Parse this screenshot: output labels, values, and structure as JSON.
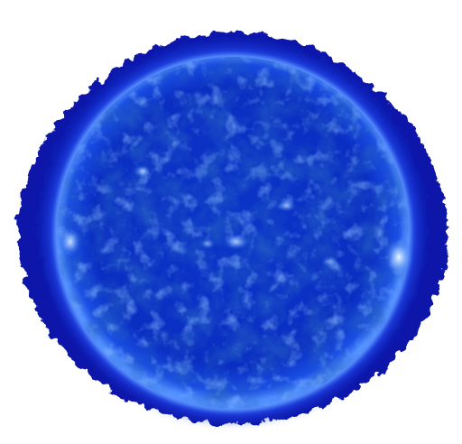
{
  "image": {
    "subject": "solar-disk",
    "colors": {
      "background": "#ffffff",
      "corona_outer": "#0a16a8",
      "corona_mid": "#1532d6",
      "limb_glow": "#4f8dff",
      "disk_base": "#0a2ec2",
      "disk_dark": "#031480",
      "disk_light": "#2a64f0",
      "active_region": "#cfe6ff"
    }
  }
}
